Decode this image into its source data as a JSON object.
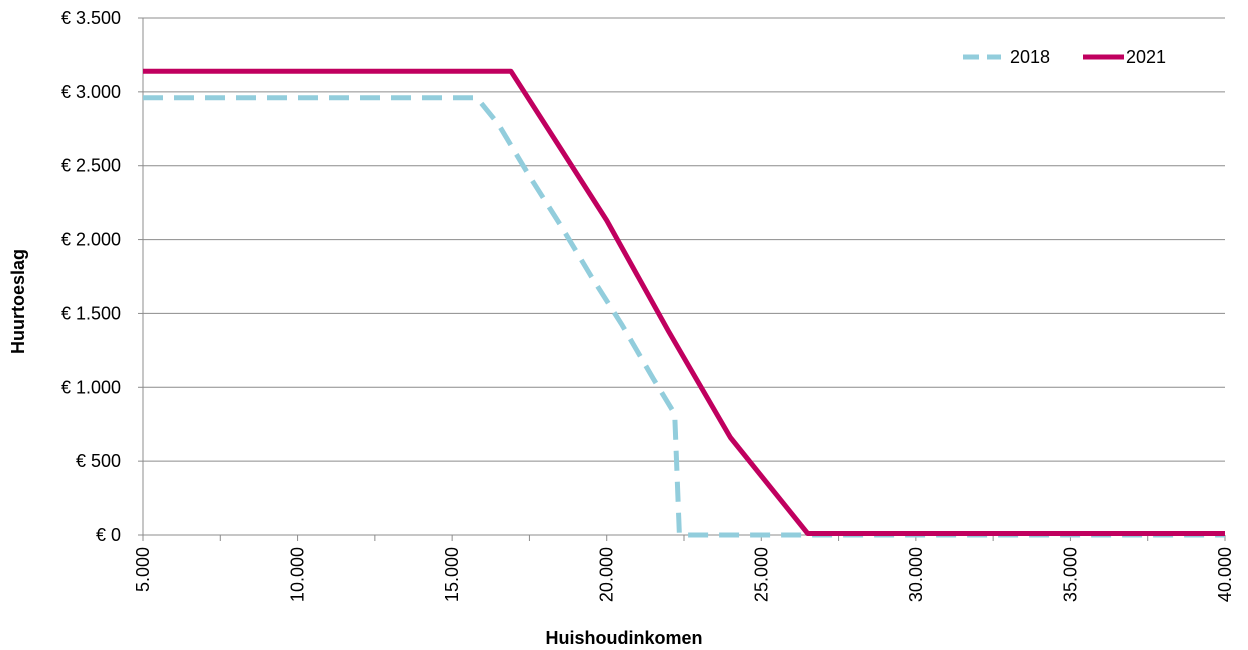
{
  "chart_data": {
    "type": "line",
    "title": "",
    "xlabel": "Huishoudinkomen",
    "ylabel": "Huurtoeslag",
    "xlim": [
      5000,
      40000
    ],
    "ylim": [
      0,
      3500
    ],
    "x_ticks": [
      5000,
      10000,
      15000,
      20000,
      25000,
      30000,
      35000,
      40000
    ],
    "x_tick_labels": [
      "5.000",
      "10.000",
      "15.000",
      "20.000",
      "25.000",
      "30.000",
      "35.000",
      "40.000"
    ],
    "y_ticks": [
      0,
      500,
      1000,
      1500,
      2000,
      2500,
      3000,
      3500
    ],
    "y_tick_labels": [
      "€ 0",
      "€ 500",
      "€ 1.000",
      "€ 1.500",
      "€ 2.000",
      "€ 2.500",
      "€ 3.000",
      "€ 3.500"
    ],
    "grid": "horizontal",
    "legend_position": "top-right",
    "series": [
      {
        "name": "2018",
        "color": "#92CDDC",
        "style": "dashed",
        "x": [
          5000,
          15800,
          16500,
          17500,
          18500,
          19500,
          20500,
          21500,
          22200,
          22350,
          22450,
          40000
        ],
        "y": [
          2960,
          2960,
          2780,
          2430,
          2100,
          1750,
          1420,
          1060,
          820,
          0,
          0,
          0
        ]
      },
      {
        "name": "2021",
        "color": "#C0005F",
        "style": "solid",
        "x": [
          5000,
          16900,
          18500,
          20000,
          22000,
          24000,
          26500,
          40000
        ],
        "y": [
          3140,
          3140,
          2620,
          2130,
          1380,
          660,
          10,
          10
        ]
      }
    ]
  }
}
